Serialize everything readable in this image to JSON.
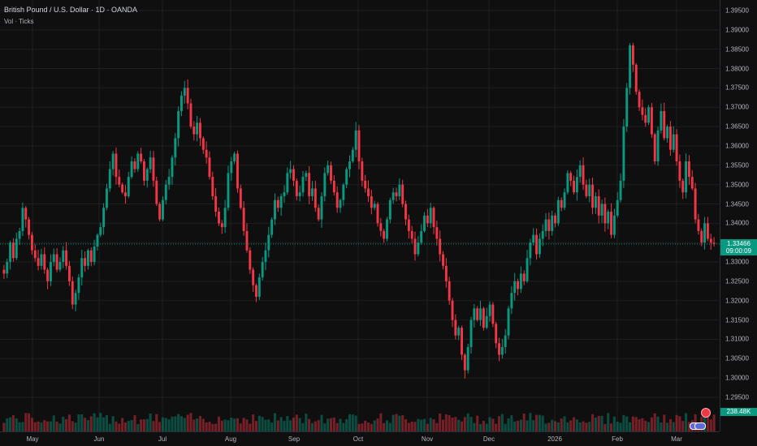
{
  "header": {
    "title": "British Pound / U.S. Dollar · 1D · OANDA",
    "subtitle": "Vol · Ticks"
  },
  "price_axis": {
    "ticks": [
      "1.39500",
      "1.39000",
      "1.38500",
      "1.38000",
      "1.37500",
      "1.37000",
      "1.36500",
      "1.36000",
      "1.35500",
      "1.35000",
      "1.34500",
      "1.34000",
      "1.33500",
      "1.33000",
      "1.32500",
      "1.32000",
      "1.31500",
      "1.31000",
      "1.30500",
      "1.30000",
      "1.29500"
    ],
    "last_price": "1.33466",
    "countdown": "09:00:09",
    "volume_value": "238.48K"
  },
  "time_axis": {
    "ticks": [
      "May",
      "Jun",
      "Jul",
      "Aug",
      "Sep",
      "Oct",
      "Nov",
      "Dec",
      "2026",
      "Feb",
      "Mar"
    ]
  },
  "colors": {
    "up": "#089981",
    "down": "#f23645",
    "background": "#0f0f0f",
    "grid": "#1f1f1f"
  },
  "icons": {
    "event": "economic-event-icon",
    "flag": "us-flag-event-icon"
  },
  "chart_data": {
    "type": "candlestick",
    "symbol": "British Pound / U.S. Dollar",
    "interval": "1D",
    "exchange": "OANDA",
    "ylim": [
      1.2925,
      1.3975
    ],
    "grid": true,
    "last_price": 1.33466,
    "closes": [
      1.327,
      1.33,
      1.335,
      1.331,
      1.336,
      1.338,
      1.344,
      1.341,
      1.337,
      1.333,
      1.331,
      1.329,
      1.332,
      1.328,
      1.325,
      1.33,
      1.332,
      1.328,
      1.33,
      1.333,
      1.329,
      1.325,
      1.319,
      1.322,
      1.326,
      1.331,
      1.329,
      1.333,
      1.33,
      1.334,
      1.337,
      1.339,
      1.344,
      1.349,
      1.354,
      1.358,
      1.352,
      1.35,
      1.348,
      1.347,
      1.352,
      1.356,
      1.354,
      1.358,
      1.356,
      1.351,
      1.354,
      1.357,
      1.351,
      1.345,
      1.341,
      1.346,
      1.35,
      1.352,
      1.357,
      1.362,
      1.369,
      1.373,
      1.375,
      1.371,
      1.365,
      1.363,
      1.366,
      1.362,
      1.359,
      1.357,
      1.352,
      1.347,
      1.343,
      1.34,
      1.339,
      1.344,
      1.353,
      1.356,
      1.358,
      1.349,
      1.344,
      1.338,
      1.333,
      1.328,
      1.324,
      1.321,
      1.326,
      1.33,
      1.333,
      1.337,
      1.341,
      1.346,
      1.344,
      1.347,
      1.348,
      1.353,
      1.354,
      1.351,
      1.347,
      1.348,
      1.352,
      1.353,
      1.347,
      1.349,
      1.344,
      1.341,
      1.347,
      1.353,
      1.355,
      1.351,
      1.348,
      1.344,
      1.346,
      1.35,
      1.354,
      1.356,
      1.359,
      1.364,
      1.356,
      1.351,
      1.349,
      1.347,
      1.344,
      1.345,
      1.34,
      1.338,
      1.336,
      1.341,
      1.346,
      1.348,
      1.347,
      1.35,
      1.345,
      1.341,
      1.338,
      1.336,
      1.332,
      1.335,
      1.338,
      1.342,
      1.34,
      1.344,
      1.339,
      1.336,
      1.332,
      1.329,
      1.325,
      1.32,
      1.315,
      1.311,
      1.313,
      1.306,
      1.302,
      1.308,
      1.315,
      1.318,
      1.315,
      1.318,
      1.313,
      1.316,
      1.319,
      1.314,
      1.309,
      1.306,
      1.308,
      1.311,
      1.318,
      1.322,
      1.325,
      1.323,
      1.327,
      1.325,
      1.331,
      1.335,
      1.337,
      1.332,
      1.336,
      1.338,
      1.341,
      1.338,
      1.342,
      1.34,
      1.346,
      1.344,
      1.348,
      1.353,
      1.351,
      1.348,
      1.352,
      1.355,
      1.35,
      1.347,
      1.35,
      1.344,
      1.347,
      1.342,
      1.345,
      1.34,
      1.343,
      1.337,
      1.342,
      1.346,
      1.351,
      1.365,
      1.375,
      1.386,
      1.381,
      1.374,
      1.37,
      1.368,
      1.366,
      1.37,
      1.363,
      1.356,
      1.364,
      1.369,
      1.362,
      1.365,
      1.359,
      1.363,
      1.356,
      1.351,
      1.348,
      1.356,
      1.352,
      1.349,
      1.341,
      1.338,
      1.335,
      1.34,
      1.336,
      1.335,
      1.3347
    ]
  }
}
